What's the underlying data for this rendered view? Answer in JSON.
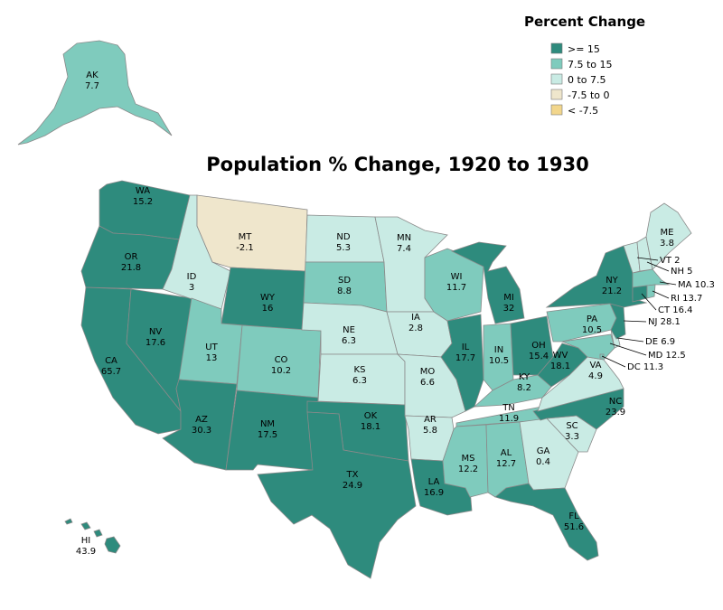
{
  "title": "Population % Change, 1920 to 1930",
  "legend": {
    "title": "Percent Change",
    "items": [
      {
        "label": ">= 15",
        "color": "#2e8b7d"
      },
      {
        "label": "7.5 to 15",
        "color": "#7fcbbd"
      },
      {
        "label": "0 to 7.5",
        "color": "#c9ebe4"
      },
      {
        "label": "-7.5 to 0",
        "color": "#efe6cc"
      },
      {
        "label": "< -7.5",
        "color": "#f2d68c"
      }
    ]
  },
  "states": [
    {
      "abbr": "AK",
      "value": "7.7"
    },
    {
      "abbr": "HI",
      "value": "43.9"
    },
    {
      "abbr": "WA",
      "value": "15.2"
    },
    {
      "abbr": "OR",
      "value": "21.8"
    },
    {
      "abbr": "CA",
      "value": "65.7"
    },
    {
      "abbr": "NV",
      "value": "17.6"
    },
    {
      "abbr": "ID",
      "value": "3"
    },
    {
      "abbr": "MT",
      "value": "-2.1"
    },
    {
      "abbr": "WY",
      "value": "16"
    },
    {
      "abbr": "UT",
      "value": "13"
    },
    {
      "abbr": "CO",
      "value": "10.2"
    },
    {
      "abbr": "AZ",
      "value": "30.3"
    },
    {
      "abbr": "NM",
      "value": "17.5"
    },
    {
      "abbr": "ND",
      "value": "5.3"
    },
    {
      "abbr": "SD",
      "value": "8.8"
    },
    {
      "abbr": "NE",
      "value": "6.3"
    },
    {
      "abbr": "KS",
      "value": "6.3"
    },
    {
      "abbr": "OK",
      "value": "18.1"
    },
    {
      "abbr": "TX",
      "value": "24.9"
    },
    {
      "abbr": "MN",
      "value": "7.4"
    },
    {
      "abbr": "IA",
      "value": "2.8"
    },
    {
      "abbr": "MO",
      "value": "6.6"
    },
    {
      "abbr": "AR",
      "value": "5.8"
    },
    {
      "abbr": "LA",
      "value": "16.9"
    },
    {
      "abbr": "WI",
      "value": "11.7"
    },
    {
      "abbr": "IL",
      "value": "17.7"
    },
    {
      "abbr": "MI",
      "value": "32"
    },
    {
      "abbr": "IN",
      "value": "10.5"
    },
    {
      "abbr": "OH",
      "value": "15.4"
    },
    {
      "abbr": "KY",
      "value": "8.2"
    },
    {
      "abbr": "TN",
      "value": "11.9"
    },
    {
      "abbr": "MS",
      "value": "12.2"
    },
    {
      "abbr": "AL",
      "value": "12.7"
    },
    {
      "abbr": "GA",
      "value": "0.4"
    },
    {
      "abbr": "FL",
      "value": "51.6"
    },
    {
      "abbr": "SC",
      "value": "3.3"
    },
    {
      "abbr": "NC",
      "value": "23.9"
    },
    {
      "abbr": "VA",
      "value": "4.9"
    },
    {
      "abbr": "WV",
      "value": "18.1"
    },
    {
      "abbr": "PA",
      "value": "10.5"
    },
    {
      "abbr": "NY",
      "value": "21.2"
    },
    {
      "abbr": "ME",
      "value": "3.8"
    },
    {
      "abbr": "VT",
      "value": "2"
    },
    {
      "abbr": "NH",
      "value": "5"
    },
    {
      "abbr": "MA",
      "value": "10.3"
    },
    {
      "abbr": "RI",
      "value": "13.7"
    },
    {
      "abbr": "CT",
      "value": "16.4"
    },
    {
      "abbr": "NJ",
      "value": "28.1"
    },
    {
      "abbr": "DE",
      "value": "6.9"
    },
    {
      "abbr": "MD",
      "value": "12.5"
    },
    {
      "abbr": "DC",
      "value": "11.3"
    }
  ]
}
